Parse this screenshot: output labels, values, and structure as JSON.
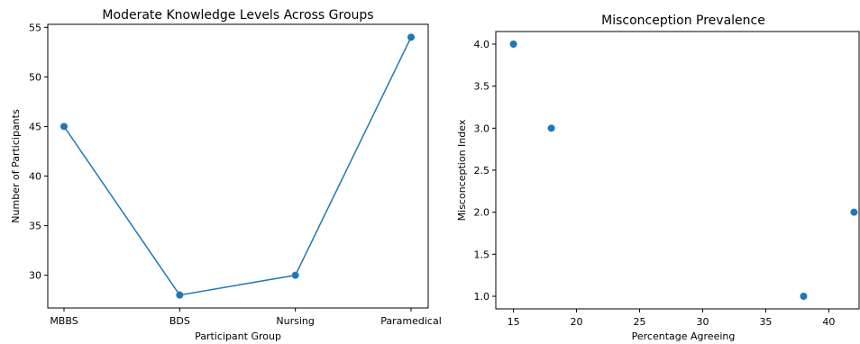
{
  "chart_data": [
    {
      "type": "line",
      "title": "Moderate Knowledge Levels Across Groups",
      "xlabel": "Participant Group",
      "ylabel": "Number of Participants",
      "categories": [
        "MBBS",
        "BDS",
        "Nursing",
        "Paramedical"
      ],
      "values": [
        45,
        28,
        30,
        54
      ],
      "ylim": [
        26.7,
        55.3
      ],
      "yticks": [
        30,
        35,
        40,
        45,
        50,
        55
      ],
      "grid": false,
      "color": "#1f77b4"
    },
    {
      "type": "scatter",
      "title": "Misconception Prevalence",
      "xlabel": "Percentage Agreeing",
      "ylabel": "Misconception Index",
      "x": [
        15,
        18,
        38,
        42
      ],
      "y": [
        4.0,
        3.0,
        1.0,
        2.0
      ],
      "xlim": [
        13.6,
        42.4
      ],
      "ylim": [
        0.85,
        4.15
      ],
      "xticks": [
        15,
        20,
        25,
        30,
        35,
        40
      ],
      "yticks": [
        1.0,
        1.5,
        2.0,
        2.5,
        3.0,
        3.5,
        4.0
      ],
      "grid": false,
      "color": "#1f77b4"
    }
  ]
}
